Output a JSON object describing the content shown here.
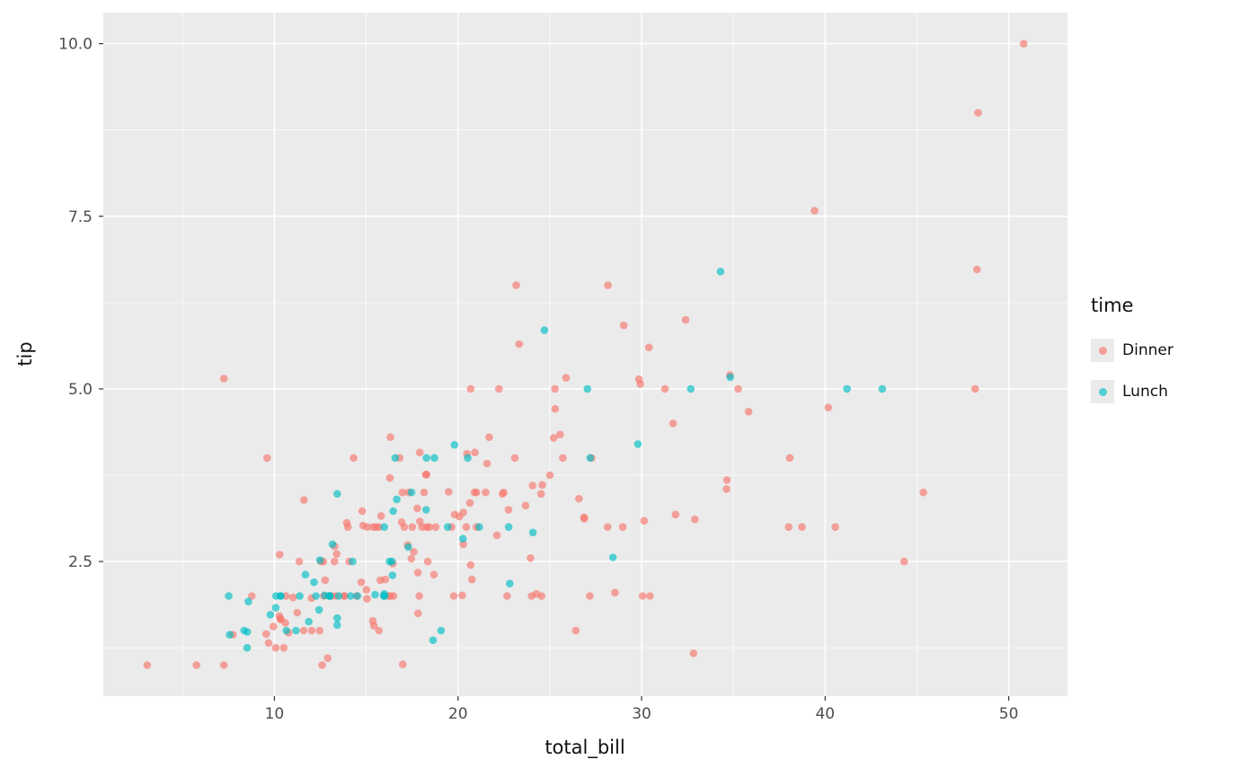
{
  "figure": {
    "background": "#FFFFFF",
    "panel_background": "#EBEBEB",
    "grid_color": "#FFFFFF",
    "tick_color": "#333333",
    "tick_label_color": "#4D4D4D",
    "axis_title_color": "#111111"
  },
  "chart_data": {
    "type": "scatter",
    "title": "",
    "xlabel": "total_bill",
    "ylabel": "tip",
    "xlim": [
      0.68,
      53.2
    ],
    "ylim": [
      0.55,
      10.45
    ],
    "x_ticks": [
      10,
      20,
      30,
      40,
      50
    ],
    "x_tick_labels": [
      "10",
      "20",
      "30",
      "40",
      "50"
    ],
    "y_ticks": [
      2.5,
      5.0,
      7.5,
      10.0
    ],
    "y_tick_labels": [
      "2.5",
      "5.0",
      "7.5",
      "10.0"
    ],
    "x_minor_ticks": [
      5,
      15,
      25,
      35,
      45
    ],
    "y_minor_ticks": [
      1.25,
      3.75,
      6.25,
      8.75
    ],
    "grid": true,
    "point_opacity": 0.65,
    "point_radius": 4.3,
    "legend": {
      "title": "time",
      "position": "right"
    },
    "series": [
      {
        "name": "Dinner",
        "color": "#F8766D",
        "points": [
          [
            16.99,
            1.01
          ],
          [
            10.34,
            1.66
          ],
          [
            21.01,
            3.5
          ],
          [
            23.68,
            3.31
          ],
          [
            24.59,
            3.61
          ],
          [
            25.29,
            4.71
          ],
          [
            8.77,
            2
          ],
          [
            26.88,
            3.12
          ],
          [
            15.04,
            1.96
          ],
          [
            14.78,
            3.23
          ],
          [
            10.27,
            1.71
          ],
          [
            35.26,
            5
          ],
          [
            15.42,
            1.57
          ],
          [
            18.43,
            3
          ],
          [
            14.83,
            3.02
          ],
          [
            21.58,
            3.92
          ],
          [
            10.33,
            1.67
          ],
          [
            16.29,
            3.71
          ],
          [
            16.97,
            3.5
          ],
          [
            20.65,
            3.35
          ],
          [
            17.92,
            4.08
          ],
          [
            20.29,
            2.75
          ],
          [
            15.77,
            2.23
          ],
          [
            39.42,
            7.58
          ],
          [
            19.82,
            3.18
          ],
          [
            17.81,
            2.34
          ],
          [
            13.37,
            2
          ],
          [
            12.69,
            2
          ],
          [
            21.7,
            4.3
          ],
          [
            19.65,
            3
          ],
          [
            9.55,
            1.45
          ],
          [
            18.35,
            2.5
          ],
          [
            15.06,
            3
          ],
          [
            20.69,
            2.45
          ],
          [
            17.78,
            3.27
          ],
          [
            24.06,
            3.6
          ],
          [
            16.31,
            2
          ],
          [
            16.93,
            3.07
          ],
          [
            18.69,
            2.31
          ],
          [
            31.27,
            5
          ],
          [
            16.04,
            2.24
          ],
          [
            17.46,
            2.54
          ],
          [
            13.94,
            3.06
          ],
          [
            9.68,
            1.32
          ],
          [
            30.4,
            5.6
          ],
          [
            18.29,
            3
          ],
          [
            22.23,
            5
          ],
          [
            32.4,
            6
          ],
          [
            28.55,
            2.05
          ],
          [
            18.04,
            3
          ],
          [
            12.54,
            2.5
          ],
          [
            10.29,
            2.6
          ],
          [
            34.81,
            5.2
          ],
          [
            9.94,
            1.56
          ],
          [
            25.56,
            4.34
          ],
          [
            19.49,
            3.51
          ],
          [
            38.01,
            3
          ],
          [
            26.41,
            1.5
          ],
          [
            11.24,
            1.76
          ],
          [
            48.27,
            6.73
          ],
          [
            20.29,
            3.21
          ],
          [
            13.81,
            2
          ],
          [
            11.02,
            1.98
          ],
          [
            18.29,
            3.76
          ],
          [
            17.59,
            2.64
          ],
          [
            20.08,
            3.15
          ],
          [
            16.45,
            2.47
          ],
          [
            3.07,
            1
          ],
          [
            20.23,
            2.01
          ],
          [
            15.01,
            2.09
          ],
          [
            12.02,
            1.97
          ],
          [
            17.07,
            3
          ],
          [
            26.86,
            3.14
          ],
          [
            25.28,
            5
          ],
          [
            14.73,
            2.2
          ],
          [
            10.51,
            1.25
          ],
          [
            17.92,
            3.08
          ],
          [
            28.97,
            3
          ],
          [
            22.49,
            3.5
          ],
          [
            5.75,
            1
          ],
          [
            16.32,
            4.3
          ],
          [
            22.75,
            3.25
          ],
          [
            40.17,
            4.73
          ],
          [
            27.28,
            4
          ],
          [
            12.03,
            1.5
          ],
          [
            21.01,
            3
          ],
          [
            12.46,
            1.5
          ],
          [
            11.35,
            2.5
          ],
          [
            15.38,
            3
          ],
          [
            44.3,
            2.5
          ],
          [
            22.42,
            3.48
          ],
          [
            20.92,
            4.08
          ],
          [
            15.36,
            1.64
          ],
          [
            20.49,
            4.06
          ],
          [
            25.21,
            4.29
          ],
          [
            18.24,
            3.76
          ],
          [
            14.31,
            4
          ],
          [
            14,
            3
          ],
          [
            7.25,
            1
          ],
          [
            38.07,
            4
          ],
          [
            23.95,
            2.55
          ],
          [
            25.71,
            4
          ],
          [
            17.31,
            3.5
          ],
          [
            29.93,
            5.07
          ],
          [
            14.07,
            2.5
          ],
          [
            13.13,
            2
          ],
          [
            17.26,
            2.74
          ],
          [
            24.55,
            2
          ],
          [
            19.77,
            2
          ],
          [
            29.85,
            5.14
          ],
          [
            48.17,
            5
          ],
          [
            25,
            3.75
          ],
          [
            13.39,
            2.61
          ],
          [
            16.49,
            2
          ],
          [
            21.5,
            3.5
          ],
          [
            12.66,
            2.5
          ],
          [
            16.21,
            2
          ],
          [
            13.81,
            2
          ],
          [
            17.51,
            3
          ],
          [
            24.52,
            3.48
          ],
          [
            20.76,
            2.24
          ],
          [
            31.71,
            4.5
          ],
          [
            10.59,
            1.61
          ],
          [
            10.63,
            2
          ],
          [
            50.81,
            10
          ],
          [
            15.81,
            3.16
          ],
          [
            7.25,
            5.15
          ],
          [
            31.85,
            3.18
          ],
          [
            16.82,
            4
          ],
          [
            32.9,
            3.11
          ],
          [
            17.89,
            2
          ],
          [
            14.48,
            2
          ],
          [
            9.6,
            4
          ],
          [
            34.63,
            3.55
          ],
          [
            34.65,
            3.68
          ],
          [
            23.33,
            5.65
          ],
          [
            45.35,
            3.5
          ],
          [
            23.17,
            6.5
          ],
          [
            40.55,
            3
          ],
          [
            20.69,
            5
          ],
          [
            20.9,
            3.5
          ],
          [
            30.46,
            2
          ],
          [
            18.15,
            3.5
          ],
          [
            23.1,
            4
          ],
          [
            15.69,
            1.5
          ],
          [
            26.59,
            3.41
          ],
          [
            38.73,
            3
          ],
          [
            24.27,
            2.03
          ],
          [
            12.76,
            2.23
          ],
          [
            30.06,
            2
          ],
          [
            25.89,
            5.16
          ],
          [
            48.33,
            9
          ],
          [
            13.27,
            2.5
          ],
          [
            28.17,
            6.5
          ],
          [
            12.9,
            1.1
          ],
          [
            28.15,
            3
          ],
          [
            11.59,
            1.5
          ],
          [
            7.74,
            1.44
          ],
          [
            30.14,
            3.09
          ],
          [
            20.45,
            3
          ],
          [
            13.28,
            2.72
          ],
          [
            22.12,
            2.88
          ],
          [
            24.01,
            2
          ],
          [
            15.69,
            3
          ],
          [
            11.61,
            3.39
          ],
          [
            10.77,
            1.47
          ],
          [
            15.53,
            3
          ],
          [
            10.07,
            1.25
          ],
          [
            12.6,
            1
          ],
          [
            32.83,
            1.17
          ],
          [
            35.83,
            4.67
          ],
          [
            29.03,
            5.92
          ],
          [
            27.18,
            2
          ],
          [
            22.67,
            2
          ],
          [
            17.82,
            1.75
          ],
          [
            18.78,
            3
          ]
        ]
      },
      {
        "name": "Lunch",
        "color": "#00BFC4",
        "points": [
          [
            27.2,
            4
          ],
          [
            22.76,
            3
          ],
          [
            17.29,
            2.71
          ],
          [
            19.44,
            3
          ],
          [
            16.66,
            3.4
          ],
          [
            10.07,
            1.83
          ],
          [
            32.68,
            5
          ],
          [
            15.98,
            2.03
          ],
          [
            34.83,
            5.17
          ],
          [
            13.03,
            2
          ],
          [
            18.28,
            4
          ],
          [
            24.71,
            5.85
          ],
          [
            21.16,
            3
          ],
          [
            10.65,
            1.5
          ],
          [
            12.43,
            1.8
          ],
          [
            24.08,
            2.92
          ],
          [
            11.69,
            2.31
          ],
          [
            13.42,
            1.68
          ],
          [
            14.26,
            2.5
          ],
          [
            15.95,
            2
          ],
          [
            12.48,
            2.52
          ],
          [
            29.8,
            4.2
          ],
          [
            8.52,
            1.48
          ],
          [
            14.52,
            2
          ],
          [
            11.38,
            2
          ],
          [
            22.82,
            2.18
          ],
          [
            19.08,
            1.5
          ],
          [
            20.27,
            2.83
          ],
          [
            11.17,
            1.5
          ],
          [
            12.26,
            2
          ],
          [
            18.26,
            3.25
          ],
          [
            8.51,
            1.25
          ],
          [
            10.33,
            2
          ],
          [
            14.15,
            2
          ],
          [
            16,
            2
          ],
          [
            13.16,
            2.75
          ],
          [
            17.47,
            3.5
          ],
          [
            34.3,
            6.7
          ],
          [
            41.19,
            5
          ],
          [
            27.05,
            5
          ],
          [
            16.43,
            2.3
          ],
          [
            8.35,
            1.5
          ],
          [
            18.64,
            1.36
          ],
          [
            11.87,
            1.63
          ],
          [
            9.78,
            1.73
          ],
          [
            7.51,
            2
          ],
          [
            19.81,
            4.19
          ],
          [
            28.44,
            2.56
          ],
          [
            15.48,
            2.02
          ],
          [
            16.58,
            4
          ],
          [
            7.56,
            1.44
          ],
          [
            10.34,
            2
          ],
          [
            43.11,
            5
          ],
          [
            13,
            2
          ],
          [
            13.51,
            2
          ],
          [
            18.71,
            4
          ],
          [
            12.74,
            2.01
          ],
          [
            13,
            2
          ],
          [
            16.4,
            2.5
          ],
          [
            20.53,
            4
          ],
          [
            16.47,
            3.23
          ],
          [
            12.16,
            2.2
          ],
          [
            13.42,
            3.48
          ],
          [
            8.58,
            1.92
          ],
          [
            15.98,
            3
          ],
          [
            13.42,
            1.58
          ],
          [
            16.27,
            2.5
          ],
          [
            10.09,
            2
          ]
        ]
      }
    ]
  }
}
